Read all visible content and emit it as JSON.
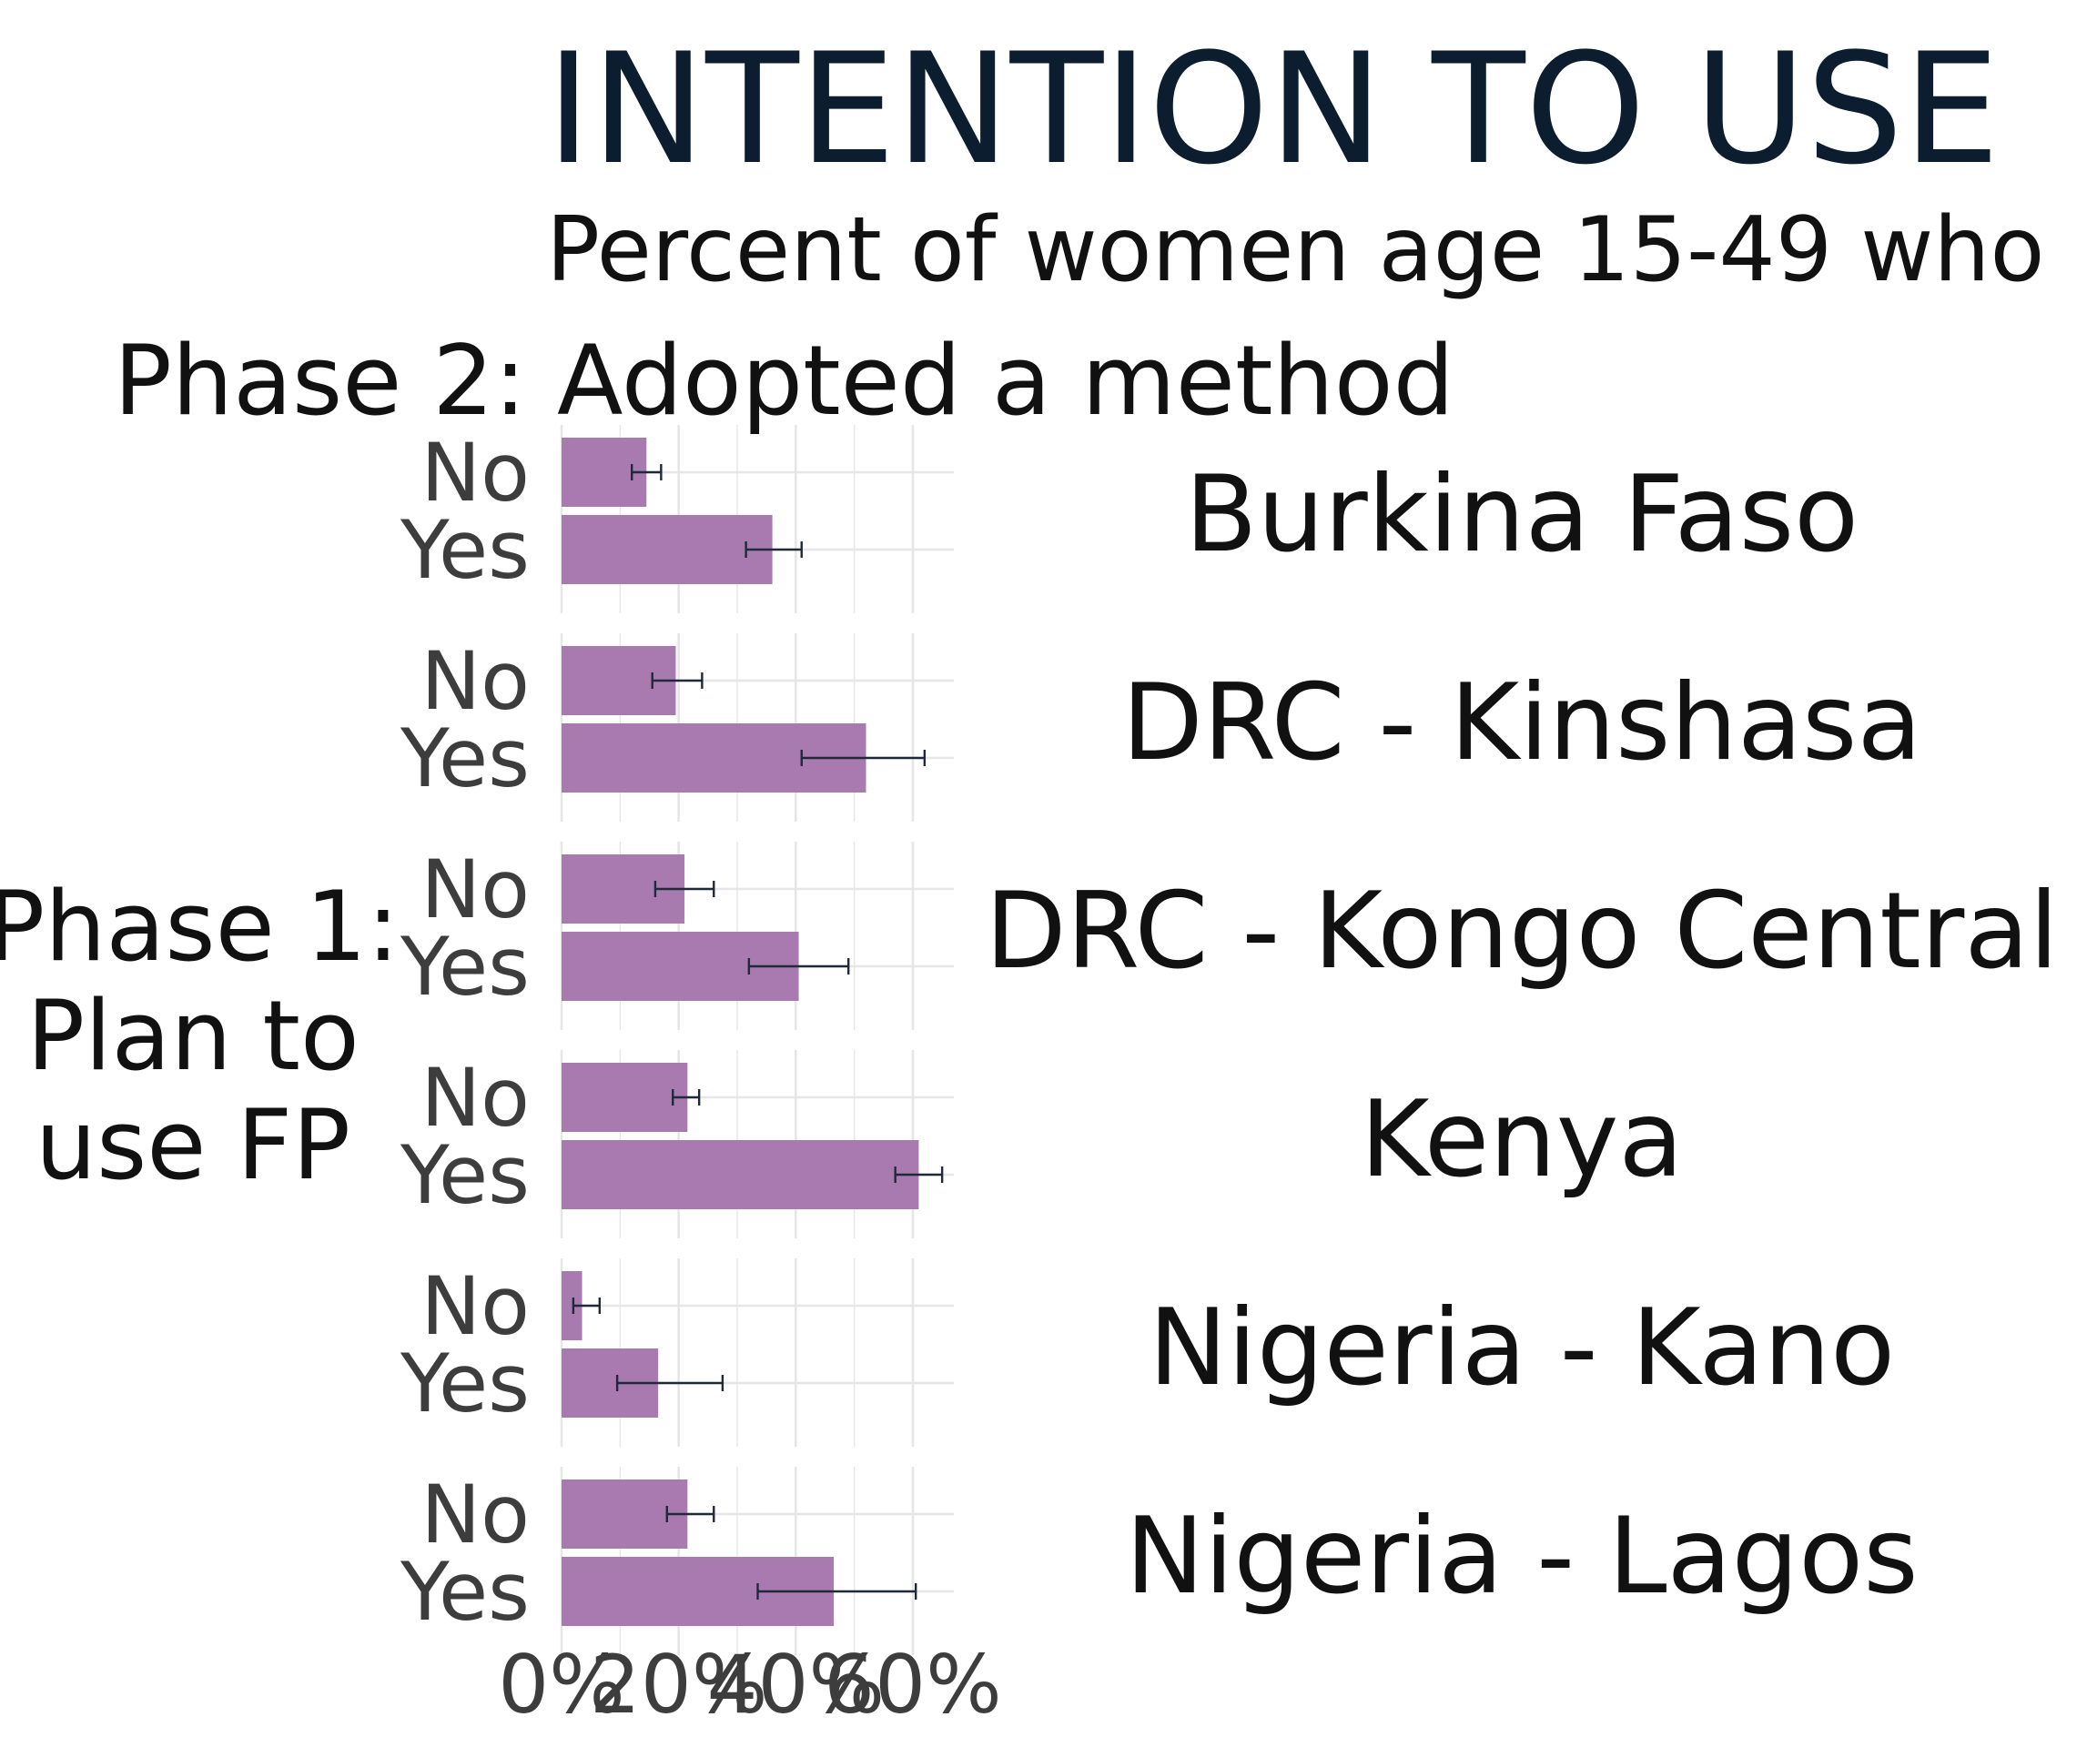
{
  "chart_data": {
    "type": "bar",
    "orientation": "horizontal",
    "title": "INTENTION TO USE",
    "subtitle": "Percent of women age 15-49 who",
    "xlabel": "Phase 2: Adopted a method",
    "ylabel": "Phase 1: Plan to use FP",
    "ylabel_lines": [
      "Phase 1:",
      "Plan to",
      "use FP"
    ],
    "xlim": [
      0,
      67
    ],
    "x_ticks": [
      0,
      20,
      40,
      60
    ],
    "x_tick_labels": [
      "0%",
      "20%",
      "40%",
      "60%"
    ],
    "categories": [
      "No",
      "Yes"
    ],
    "grid": true,
    "error_bars": true,
    "colors": {
      "bar": "#a87aaf",
      "error_bar": "#1e2a3a",
      "title": "#0b1d2e",
      "text": "#111111",
      "tick_text": "#3d3d3d",
      "grid": "#e6e6e6"
    },
    "panels": [
      {
        "name": "Burkina Faso",
        "values": [
          14.5,
          36
        ],
        "ci_low": [
          12,
          31.5
        ],
        "ci_high": [
          17,
          41
        ]
      },
      {
        "name": "DRC - Kinshasa",
        "values": [
          19.5,
          52
        ],
        "ci_low": [
          15.5,
          41
        ],
        "ci_high": [
          24,
          62
        ]
      },
      {
        "name": "DRC - Kongo Central",
        "values": [
          21,
          40.5
        ],
        "ci_low": [
          16,
          32
        ],
        "ci_high": [
          26,
          49
        ]
      },
      {
        "name": "Kenya",
        "values": [
          21.5,
          61
        ],
        "ci_low": [
          19,
          57
        ],
        "ci_high": [
          23.5,
          65
        ]
      },
      {
        "name": "Nigeria - Kano",
        "values": [
          3.5,
          16.5
        ],
        "ci_low": [
          2,
          9.5
        ],
        "ci_high": [
          6.5,
          27.5
        ]
      },
      {
        "name": "Nigeria - Lagos",
        "values": [
          21.5,
          46.5
        ],
        "ci_low": [
          18,
          33.5
        ],
        "ci_high": [
          26,
          60.5
        ]
      }
    ]
  }
}
